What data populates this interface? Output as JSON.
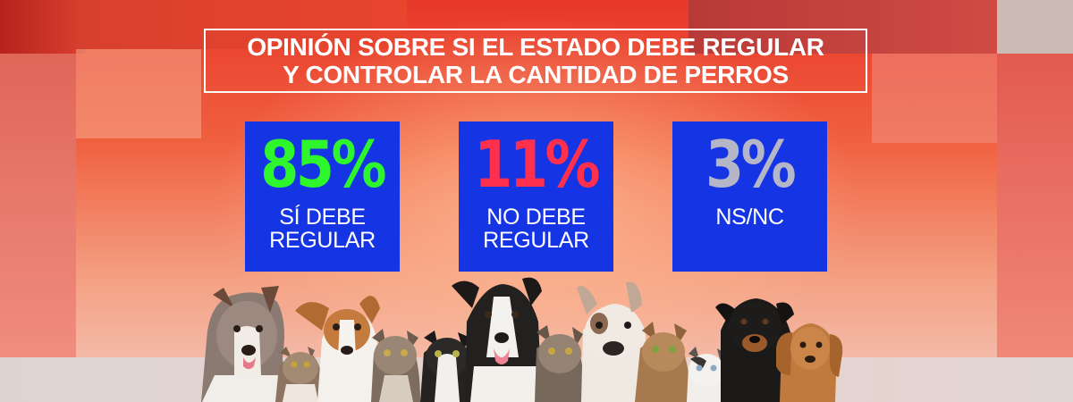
{
  "title": {
    "line1": "OPINIÓN SOBRE SI EL ESTADO DEBE REGULAR",
    "line2": "Y CONTROLAR LA CANTIDAD DE PERROS"
  },
  "stats": [
    {
      "value": "85%",
      "label_line1": "SÍ DEBE",
      "label_line2": "REGULAR",
      "color": "#2ef52c"
    },
    {
      "value": "11%",
      "label_line1": "NO DEBE",
      "label_line2": "REGULAR",
      "color": "#ff2f4e"
    },
    {
      "value": "3%",
      "label_line1": "NS/NC",
      "label_line2": "",
      "color": "#b5b6c7"
    }
  ],
  "colors": {
    "card_bg": "#1534e4",
    "title": "#ffffff"
  },
  "illustration": "dogs-and-cats-row"
}
